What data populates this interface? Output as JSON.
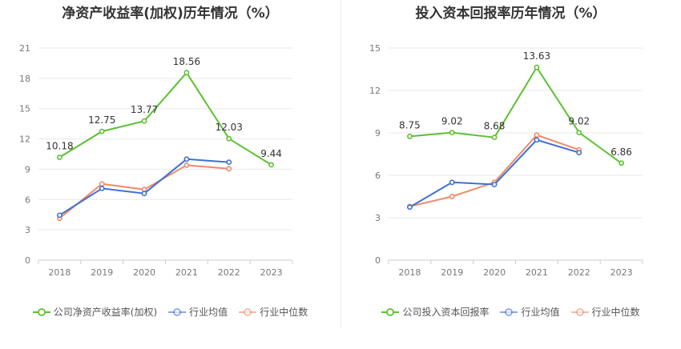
{
  "colors": {
    "company": "#5cc22e",
    "industry_avg": "#3f6fd4",
    "industry_median": "#f08a68"
  },
  "chart_data": [
    {
      "type": "line",
      "title": "净资产收益率(加权)历年情况（%）",
      "categories": [
        "2018",
        "2019",
        "2020",
        "2021",
        "2022",
        "2023"
      ],
      "ylim": [
        0,
        21
      ],
      "yticks": [
        0,
        3,
        6,
        9,
        12,
        15,
        18,
        21
      ],
      "grid": true,
      "legend_position": "bottom",
      "series": [
        {
          "name": "公司净资产收益率(加权)",
          "key": "company",
          "values": [
            10.18,
            12.75,
            13.77,
            18.56,
            12.03,
            9.44
          ],
          "labels": [
            "10.18",
            "12.75",
            "13.77",
            "18.56",
            "12.03",
            "9.44"
          ]
        },
        {
          "name": "行业均值",
          "key": "industry_avg",
          "values": [
            4.45,
            7.1,
            6.6,
            10.0,
            9.7,
            null
          ]
        },
        {
          "name": "行业中位数",
          "key": "industry_median",
          "values": [
            4.15,
            7.55,
            7.0,
            9.4,
            9.05,
            null
          ]
        }
      ]
    },
    {
      "type": "line",
      "title": "投入资本回报率历年情况（%）",
      "categories": [
        "2018",
        "2019",
        "2020",
        "2021",
        "2022",
        "2023"
      ],
      "ylim": [
        0,
        15
      ],
      "yticks": [
        0,
        3,
        6,
        9,
        12,
        15
      ],
      "grid": true,
      "legend_position": "bottom",
      "series": [
        {
          "name": "公司投入资本回报率",
          "key": "company",
          "values": [
            8.75,
            9.02,
            8.68,
            13.63,
            9.02,
            6.86
          ],
          "labels": [
            "8.75",
            "9.02",
            "8.68",
            "13.63",
            "9.02",
            "6.86"
          ]
        },
        {
          "name": "行业均值",
          "key": "industry_avg",
          "values": [
            3.75,
            5.5,
            5.35,
            8.5,
            7.6,
            null
          ]
        },
        {
          "name": "行业中位数",
          "key": "industry_median",
          "values": [
            3.8,
            4.5,
            5.5,
            8.85,
            7.8,
            null
          ]
        }
      ]
    }
  ]
}
